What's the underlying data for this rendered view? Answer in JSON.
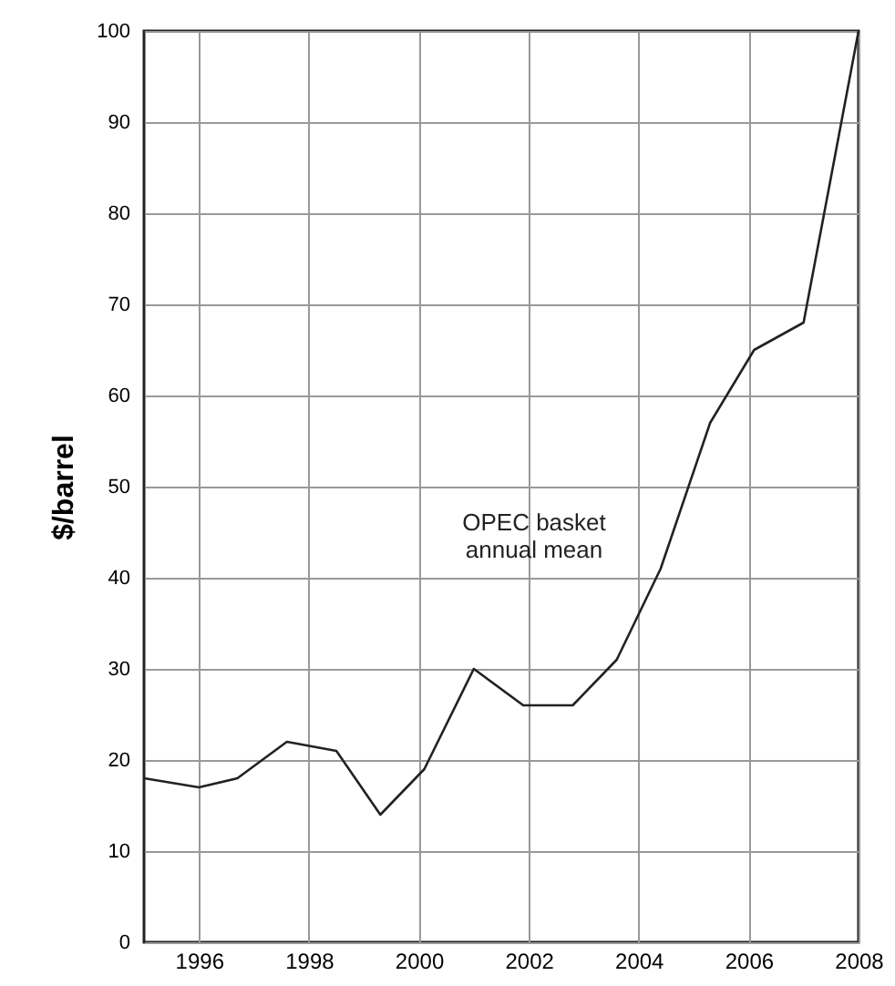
{
  "chart_data": {
    "type": "line",
    "ylabel": "$/barrel",
    "x": [
      1995,
      1996,
      1996.7,
      1997.6,
      1998.5,
      1999.3,
      2000.1,
      2001,
      2001.9,
      2002.8,
      2003.6,
      2004.4,
      2005.3,
      2006.1,
      2007,
      2008
    ],
    "series": [
      {
        "color": "#222222",
        "values": [
          18,
          17,
          18,
          22,
          21,
          14,
          19,
          30,
          26,
          26,
          31,
          41,
          57,
          65,
          68,
          100
        ]
      }
    ],
    "xlim": [
      1995,
      2008
    ],
    "xticks": [
      1996,
      1998,
      2000,
      2002,
      2004,
      2006,
      2008
    ],
    "ylim": [
      0,
      100
    ],
    "yticks": [
      0,
      10,
      20,
      30,
      40,
      50,
      60,
      70,
      80,
      90,
      100
    ],
    "grid": true,
    "marker": "none",
    "line_style": "solid",
    "annotations": [
      "OPEC basket\nannual mean"
    ]
  }
}
